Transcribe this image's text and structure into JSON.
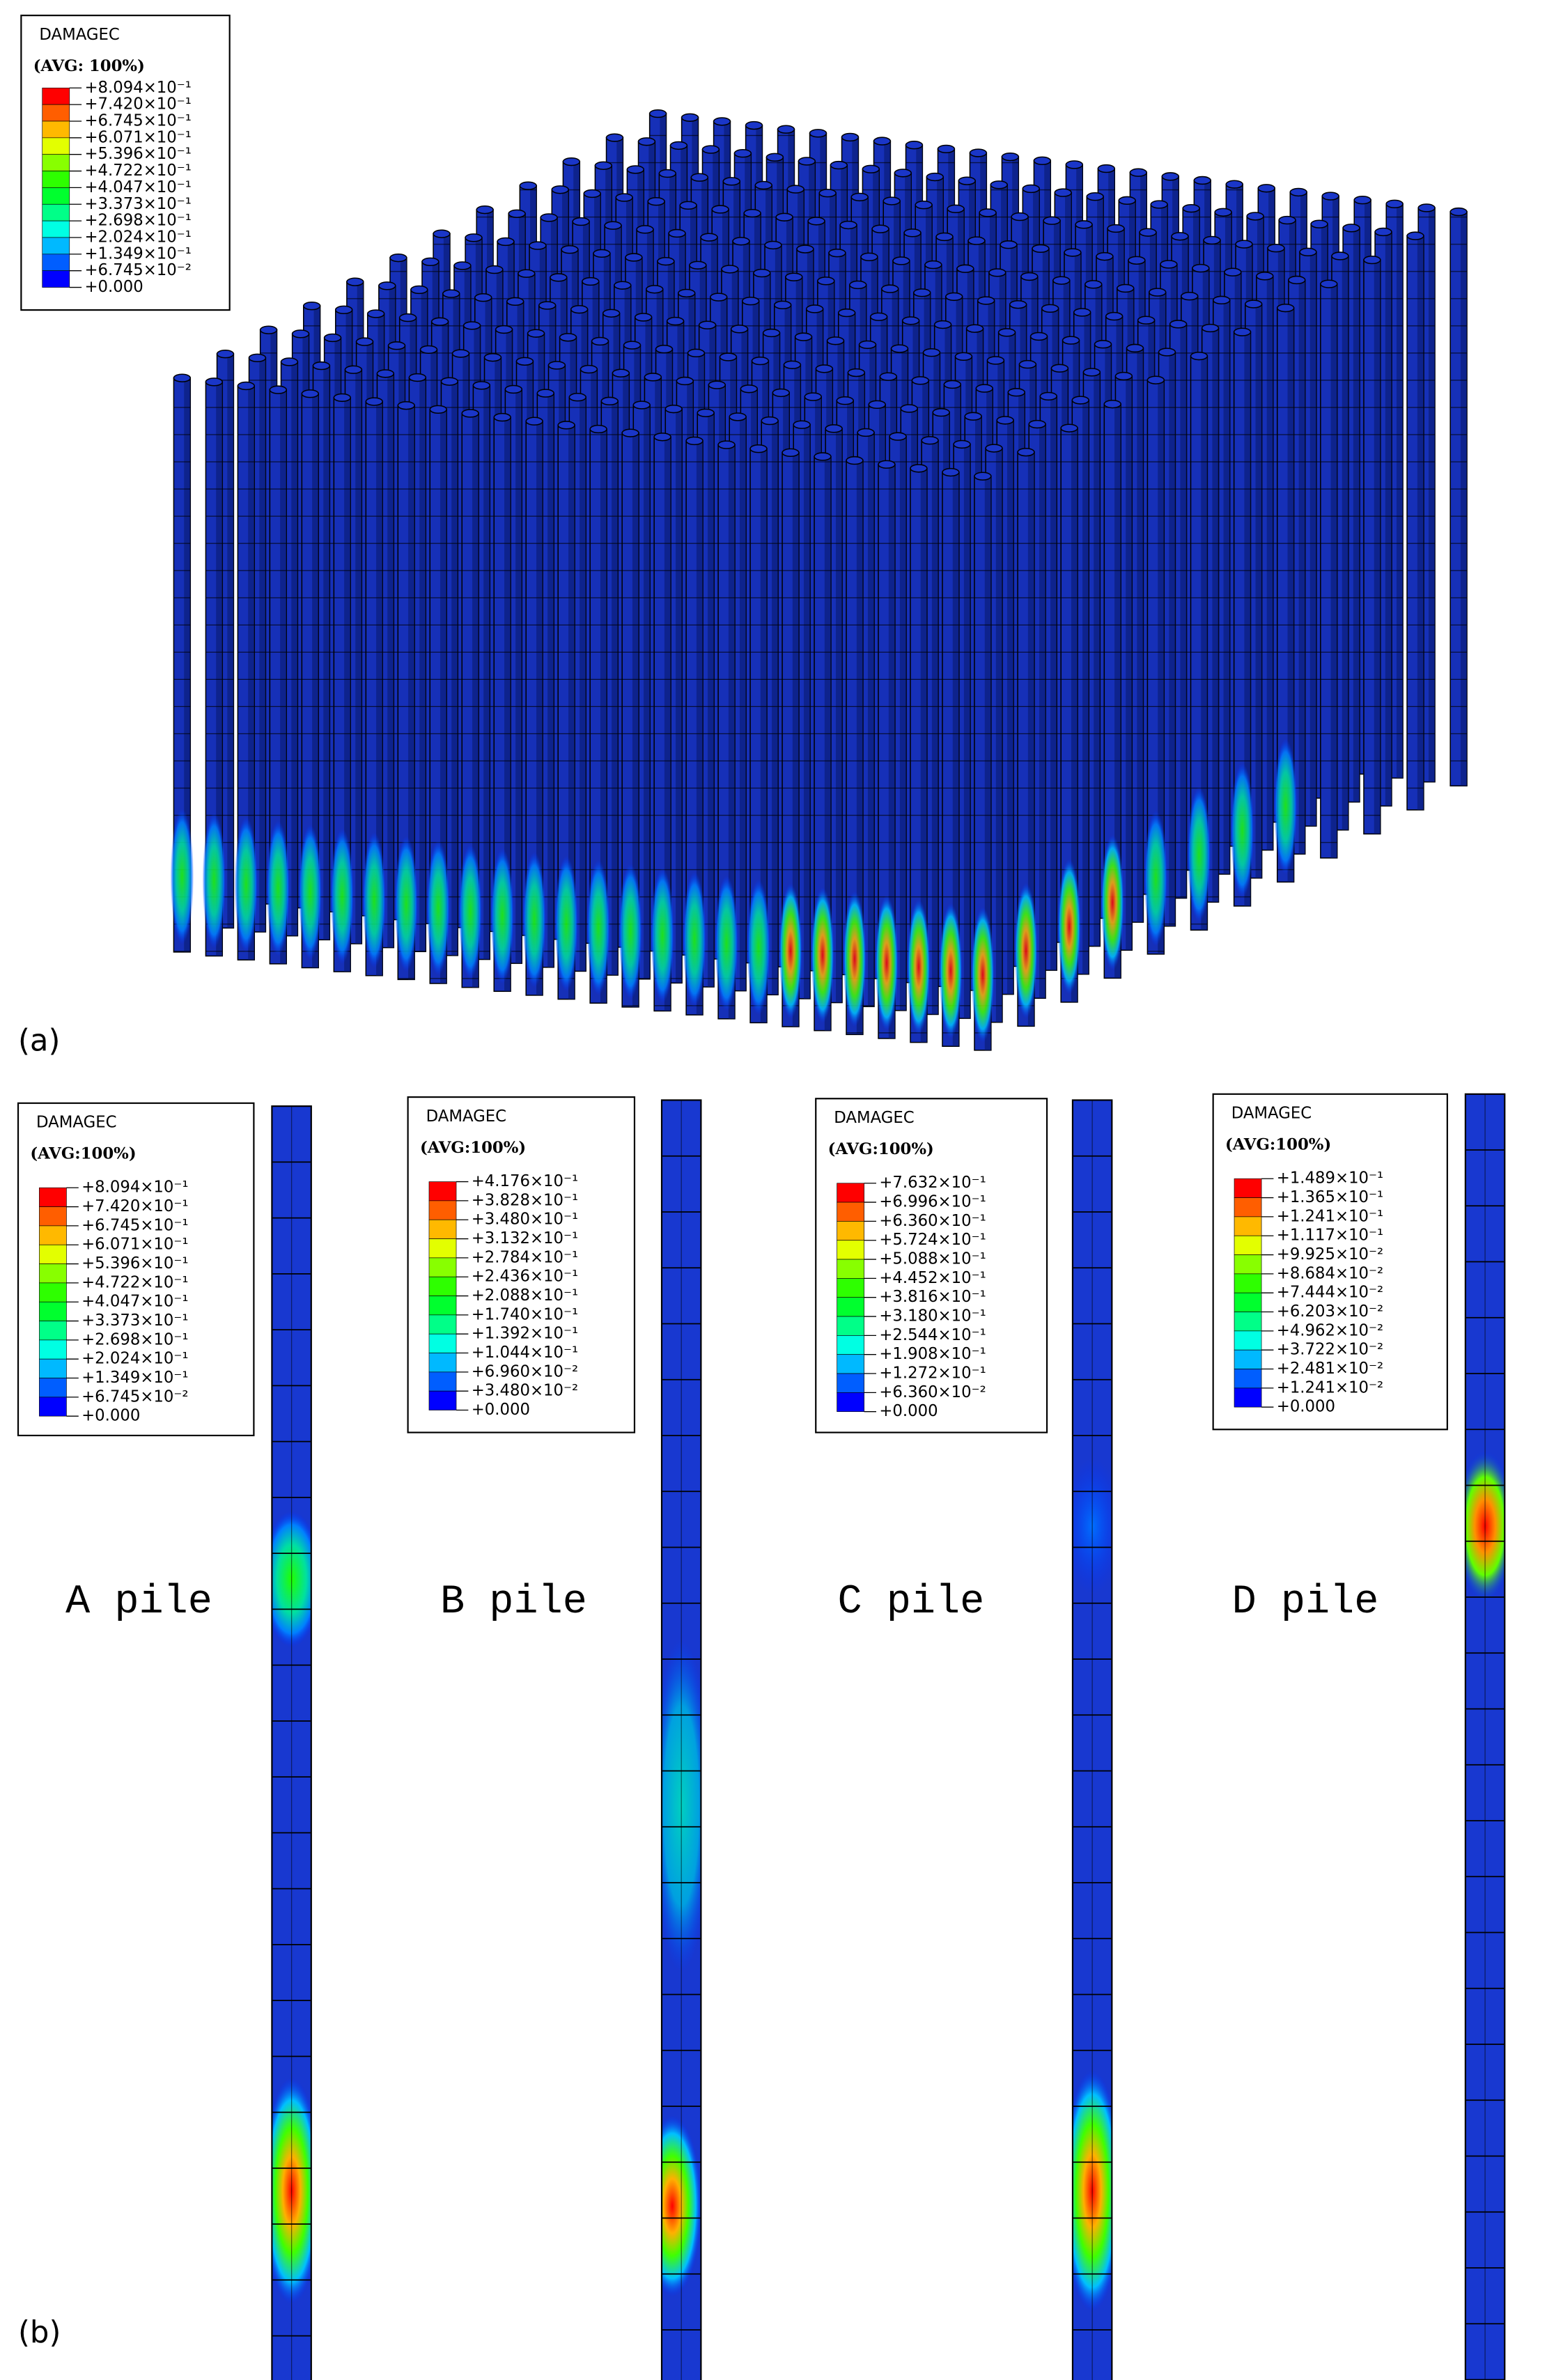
{
  "panel_a": {
    "label": "(a)",
    "legend": {
      "title": "DAMAGEC",
      "subtitle": "(AVG: 100%)",
      "labels": [
        "+8.094×10⁻¹",
        "+7.420×10⁻¹",
        "+6.745×10⁻¹",
        "+6.071×10⁻¹",
        "+5.396×10⁻¹",
        "+4.722×10⁻¹",
        "+4.047×10⁻¹",
        "+3.373×10⁻¹",
        "+2.698×10⁻¹",
        "+2.024×10⁻¹",
        "+1.349×10⁻¹",
        "+6.745×10⁻²",
        "+0.000"
      ]
    }
  },
  "panel_b": {
    "label": "(b)",
    "piles": [
      {
        "name": "A pile",
        "legend": {
          "title": "DAMAGEC",
          "subtitle": "(AVG:100%)",
          "labels": [
            "+8.094×10⁻¹",
            "+7.420×10⁻¹",
            "+6.745×10⁻¹",
            "+6.071×10⁻¹",
            "+5.396×10⁻¹",
            "+4.722×10⁻¹",
            "+4.047×10⁻¹",
            "+3.373×10⁻¹",
            "+2.698×10⁻¹",
            "+2.024×10⁻¹",
            "+1.349×10⁻¹",
            "+6.745×10⁻²",
            "+0.000"
          ]
        }
      },
      {
        "name": "B pile",
        "legend": {
          "title": "DAMAGEC",
          "subtitle": "(AVG:100%)",
          "labels": [
            "+4.176×10⁻¹",
            "+3.828×10⁻¹",
            "+3.480×10⁻¹",
            "+3.132×10⁻¹",
            "+2.784×10⁻¹",
            "+2.436×10⁻¹",
            "+2.088×10⁻¹",
            "+1.740×10⁻¹",
            "+1.392×10⁻¹",
            "+1.044×10⁻¹",
            "+6.960×10⁻²",
            "+3.480×10⁻²",
            "+0.000"
          ]
        }
      },
      {
        "name": "C pile",
        "legend": {
          "title": "DAMAGEC",
          "subtitle": "(AVG:100%)",
          "labels": [
            "+7.632×10⁻¹",
            "+6.996×10⁻¹",
            "+6.360×10⁻¹",
            "+5.724×10⁻¹",
            "+5.088×10⁻¹",
            "+4.452×10⁻¹",
            "+3.816×10⁻¹",
            "+3.180×10⁻¹",
            "+2.544×10⁻¹",
            "+1.908×10⁻¹",
            "+1.272×10⁻¹",
            "+6.360×10⁻²",
            "+0.000"
          ]
        }
      },
      {
        "name": "D pile",
        "legend": {
          "title": "DAMAGEC",
          "subtitle": "(AVG:100%)",
          "labels": [
            "+1.489×10⁻¹",
            "+1.365×10⁻¹",
            "+1.241×10⁻¹",
            "+1.117×10⁻¹",
            "+9.925×10⁻²",
            "+8.684×10⁻²",
            "+7.444×10⁻²",
            "+6.203×10⁻²",
            "+4.962×10⁻²",
            "+3.722×10⁻²",
            "+2.481×10⁻²",
            "+1.241×10⁻²",
            "+0.000"
          ]
        }
      }
    ]
  }
}
